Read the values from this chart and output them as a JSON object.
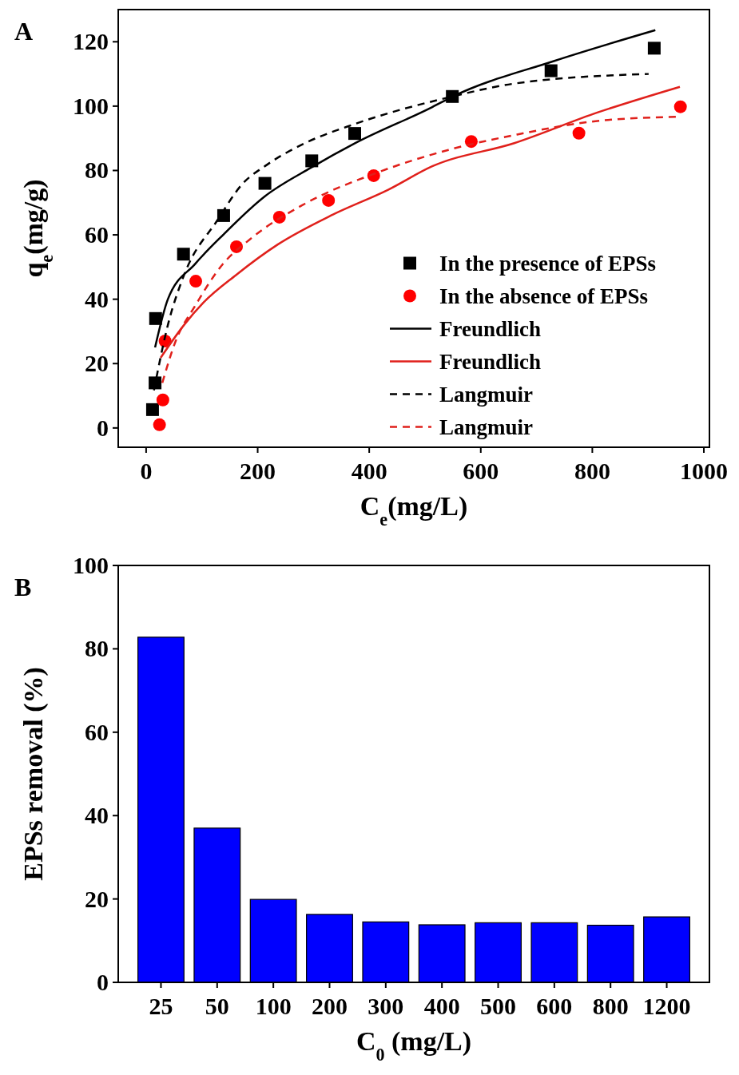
{
  "chart_data": [
    {
      "type": "line",
      "title": "A",
      "xlabel": "C$_{e}$(mg/L)",
      "ylabel": "q$_{e}$(mg/g)",
      "xlim": [
        -50,
        1010
      ],
      "ylim": [
        -6,
        130
      ],
      "xticks": [
        0,
        200,
        400,
        600,
        800,
        1000
      ],
      "yticks": [
        0,
        20,
        40,
        60,
        80,
        100,
        120
      ],
      "legend": "bottom right",
      "grid": false,
      "series": [
        {
          "name": "In the presence of EPSs",
          "type": "scatter",
          "marker": "square",
          "color": "#000000",
          "x": [
            11.5,
            16,
            17,
            67,
            139,
            213,
            297,
            374,
            549,
            726,
            911
          ],
          "values": [
            5.7,
            14,
            34,
            54,
            66,
            76,
            83,
            91.5,
            103,
            111,
            118
          ]
        },
        {
          "name": "In the absence of EPSs",
          "type": "scatter",
          "marker": "circle",
          "color": "#ff0000",
          "x": [
            24,
            30,
            34,
            89,
            162,
            239,
            327,
            408,
            583,
            776,
            958
          ],
          "values": [
            1,
            8.7,
            27,
            45.6,
            56.3,
            65.5,
            70.7,
            78.4,
            89,
            91.6,
            99.8
          ]
        },
        {
          "name": "Freundlich",
          "line_style": "solid",
          "color": "#000000",
          "x": [
            16,
            39,
            88,
            138,
            213,
            297,
            375,
            513,
            550,
            731,
            913
          ],
          "values": [
            25,
            40,
            51,
            60,
            72,
            81,
            88.5,
            99.7,
            103,
            114,
            123.6
          ]
        },
        {
          "name": "Freundlich",
          "line_style": "solid",
          "color": "#e0201b",
          "x": [
            26,
            68,
            103,
            161,
            236,
            335,
            434,
            513,
            660,
            809,
            957
          ],
          "values": [
            21.8,
            32,
            39,
            47.5,
            57,
            66.3,
            74,
            81.3,
            88.5,
            98,
            106
          ]
        },
        {
          "name": "Langmuir",
          "line_style": "dashed",
          "color": "#000000",
          "x": [
            14,
            39,
            68,
            128,
            172,
            216,
            285,
            375,
            542,
            660,
            901
          ],
          "values": [
            11.7,
            32,
            47.5,
            64.6,
            75.7,
            81.7,
            88.5,
            94.5,
            102.7,
            107,
            110
          ]
        },
        {
          "name": "Langmuir",
          "line_style": "dashed",
          "color": "#e0201b",
          "x": [
            29,
            53,
            88,
            138,
            186,
            285,
            409,
            542,
            660,
            809,
            952
          ],
          "values": [
            14,
            27,
            38,
            51,
            58.6,
            69.7,
            79,
            86.4,
            91,
            95.4,
            96.7
          ]
        }
      ]
    },
    {
      "type": "bar",
      "title": "B",
      "xlabel": "C$_{0}$ (mg/L)",
      "ylabel": "EPSs removal (%)",
      "ylim": [
        0,
        100
      ],
      "yticks": [
        0,
        20,
        40,
        60,
        80,
        100
      ],
      "grid": false,
      "legend": false,
      "categories": [
        "25",
        "50",
        "100",
        "200",
        "300",
        "400",
        "500",
        "600",
        "800",
        "1200"
      ],
      "series": [
        {
          "color": "#0000ff",
          "values": [
            82.8,
            37,
            19.9,
            16.3,
            14.5,
            13.8,
            14.3,
            14.3,
            13.7,
            15.7
          ]
        }
      ]
    }
  ]
}
